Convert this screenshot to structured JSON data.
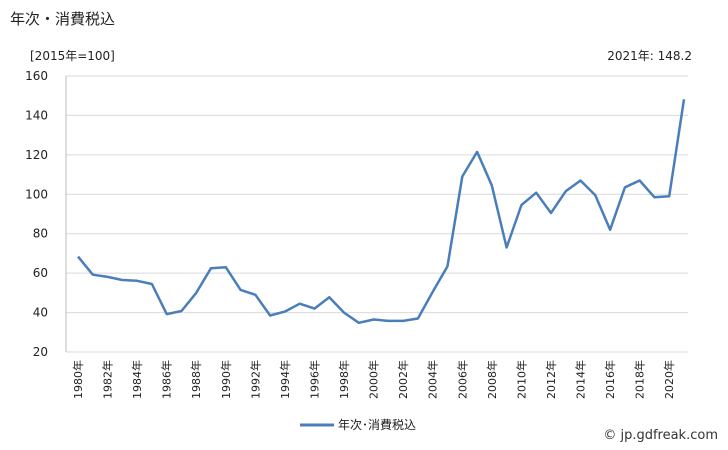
{
  "title": "年次・消費税込",
  "unit_label": "[2015年=100]",
  "latest_label": "2021年: 148.2",
  "credit": "© jp.gdfreak.com",
  "chart_data": {
    "type": "line",
    "x": [
      1980,
      1981,
      1982,
      1983,
      1984,
      1985,
      1986,
      1987,
      1988,
      1989,
      1990,
      1991,
      1992,
      1993,
      1994,
      1995,
      1996,
      1997,
      1998,
      1999,
      2000,
      2001,
      2002,
      2003,
      2004,
      2005,
      2006,
      2007,
      2008,
      2009,
      2010,
      2011,
      2012,
      2013,
      2014,
      2015,
      2016,
      2017,
      2018,
      2019,
      2020,
      2021
    ],
    "x_tick_labels": [
      "1980年",
      "1982年",
      "1984年",
      "1986年",
      "1988年",
      "1990年",
      "1992年",
      "1994年",
      "1996年",
      "1998年",
      "2000年",
      "2002年",
      "2004年",
      "2006年",
      "2008年",
      "2010年",
      "2012年",
      "2014年",
      "2016年",
      "2018年",
      "2020年"
    ],
    "series": [
      {
        "name": "年次･消費税込",
        "color": "#4a7ebb",
        "values": [
          68.4,
          59.2,
          58.1,
          56.5,
          56.1,
          54.5,
          39.2,
          40.8,
          50.0,
          62.5,
          63.0,
          51.5,
          49.0,
          38.5,
          40.5,
          44.5,
          42.0,
          47.8,
          40.0,
          34.8,
          36.5,
          35.8,
          35.8,
          37.0,
          50.5,
          63.5,
          109.0,
          121.5,
          104.5,
          73.0,
          94.5,
          100.8,
          90.5,
          101.5,
          107.0,
          99.5,
          82.0,
          103.5,
          107.0,
          98.5,
          99.0,
          148.2
        ]
      }
    ],
    "y_ticks": [
      20,
      40,
      60,
      80,
      100,
      120,
      140,
      160
    ],
    "ylim": [
      20,
      160
    ],
    "grid": true,
    "legend": "bottom-center"
  }
}
